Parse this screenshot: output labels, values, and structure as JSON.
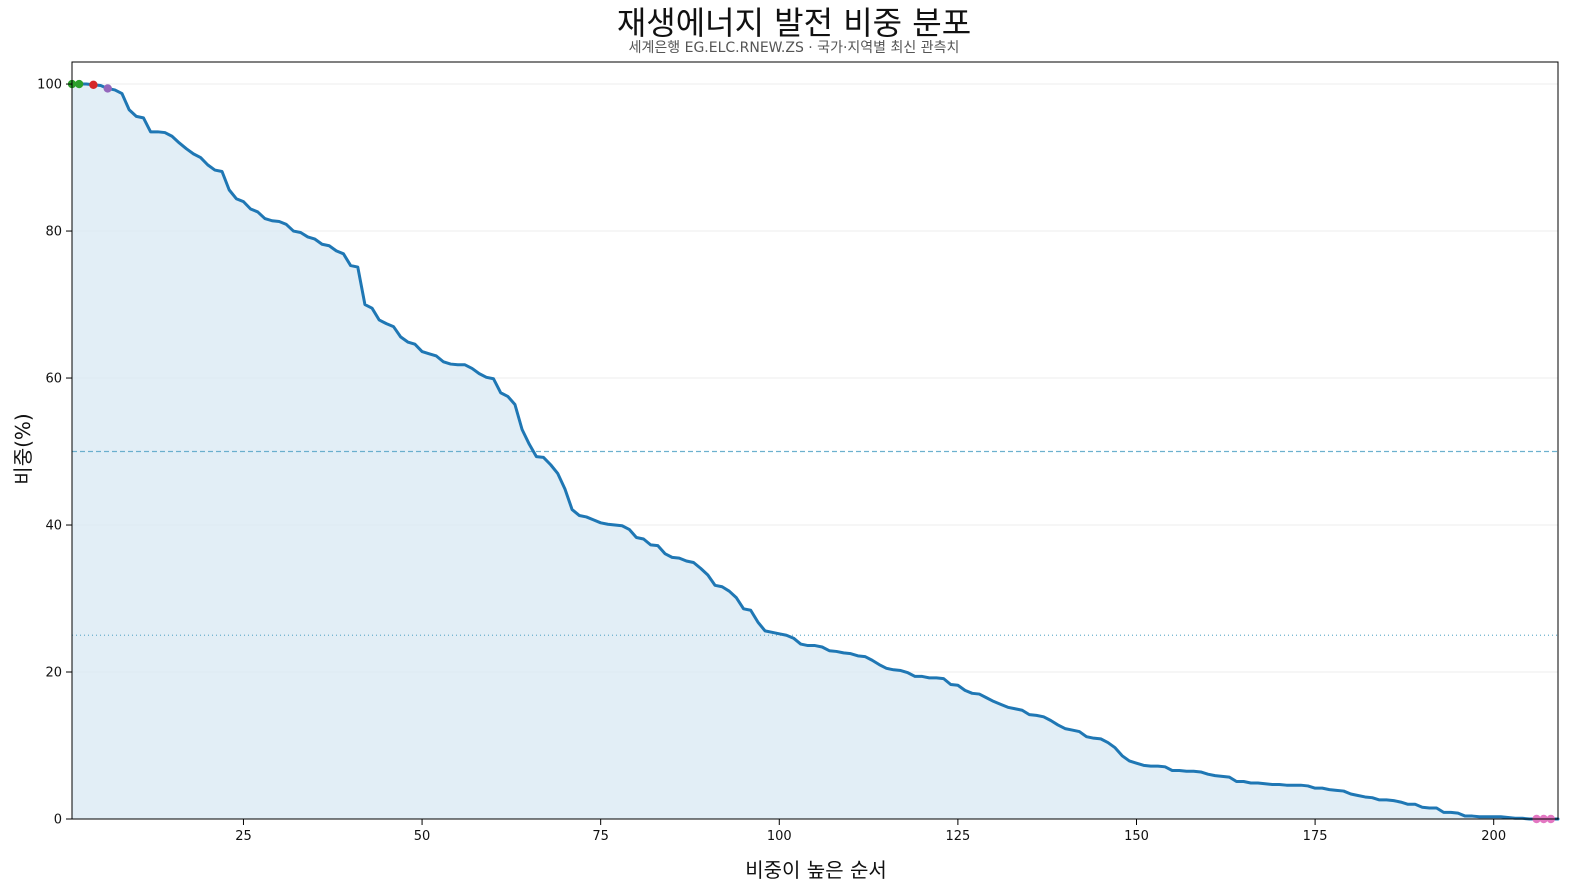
{
  "chart_data": {
    "type": "area",
    "title": "재생에너지 발전 비중 분포",
    "subtitle": "세계은행 EG.ELC.RNEW.ZS · 국가·지역별 최신 관측치",
    "xlabel": "비중이 높은 순서",
    "ylabel": "비중(%)",
    "xlim": [
      1,
      209
    ],
    "ylim": [
      0,
      103
    ],
    "x_ticks": [
      25,
      50,
      75,
      100,
      125,
      150,
      175,
      200
    ],
    "y_ticks": [
      0,
      20,
      40,
      60,
      80,
      100
    ],
    "grid": "horizontal",
    "reference_lines": [
      {
        "y": 50,
        "style": "dashed"
      },
      {
        "y": 25,
        "style": "dotted"
      }
    ],
    "colors": {
      "line": "#1f77b4",
      "fill": "#d8e8f3",
      "grid": "#eeeeee",
      "reference": "#5ea9c9",
      "marker_green": "#2ca02c",
      "marker_red": "#d62728",
      "marker_purple": "#9467bd",
      "marker_pink": "#e377c2"
    },
    "x": [
      1,
      2,
      3,
      4,
      5,
      6,
      7,
      8,
      9,
      10,
      11,
      12,
      13,
      14,
      15,
      16,
      17,
      18,
      19,
      20,
      21,
      22,
      23,
      24,
      25,
      26,
      27,
      28,
      29,
      30,
      31,
      32,
      33,
      34,
      35,
      36,
      37,
      38,
      39,
      40,
      41,
      42,
      43,
      44,
      45,
      46,
      47,
      48,
      49,
      50,
      51,
      52,
      53,
      54,
      55,
      56,
      57,
      58,
      59,
      60,
      61,
      62,
      63,
      64,
      65,
      66,
      67,
      68,
      69,
      70,
      71,
      72,
      73,
      74,
      75,
      76,
      77,
      78,
      79,
      80,
      81,
      82,
      83,
      84,
      85,
      86,
      87,
      88,
      89,
      90,
      91,
      92,
      93,
      94,
      95,
      96,
      97,
      98,
      99,
      100,
      101,
      102,
      103,
      104,
      105,
      106,
      107,
      108,
      109,
      110,
      111,
      112,
      113,
      114,
      115,
      116,
      117,
      118,
      119,
      120,
      121,
      122,
      123,
      124,
      125,
      126,
      127,
      128,
      129,
      130,
      131,
      132,
      133,
      134,
      135,
      136,
      137,
      138,
      139,
      140,
      141,
      142,
      143,
      144,
      145,
      146,
      147,
      148,
      149,
      150,
      151,
      152,
      153,
      154,
      155,
      156,
      157,
      158,
      159,
      160,
      161,
      162,
      163,
      164,
      165,
      166,
      167,
      168,
      169,
      170,
      171,
      172,
      173,
      174,
      175,
      176,
      177,
      178,
      179,
      180,
      181,
      182,
      183,
      184,
      185,
      186,
      187,
      188,
      189,
      190,
      191,
      192,
      193,
      194,
      195,
      196,
      197,
      198,
      199,
      200,
      201,
      202,
      203,
      204,
      205,
      206,
      207,
      208,
      209
    ],
    "values": [
      100,
      100,
      100,
      99.9,
      99.8,
      99.4,
      99.2,
      98.7,
      96.5,
      95.6,
      95.4,
      93.5,
      93.5,
      93.4,
      92.9,
      92.0,
      91.2,
      90.5,
      90.0,
      89.0,
      88.3,
      88.1,
      85.6,
      84.4,
      84.0,
      83.0,
      82.6,
      81.7,
      81.4,
      81.3,
      80.9,
      80.0,
      79.8,
      79.2,
      78.9,
      78.2,
      78.0,
      77.3,
      76.9,
      75.3,
      75.1,
      70.0,
      69.5,
      67.9,
      67.4,
      67.0,
      65.6,
      64.9,
      64.6,
      63.6,
      63.3,
      63.0,
      62.2,
      61.9,
      61.8,
      61.8,
      61.3,
      60.6,
      60.1,
      59.9,
      58.0,
      57.5,
      56.4,
      53.0,
      51.0,
      49.3,
      49.2,
      48.2,
      47.0,
      44.9,
      42.1,
      41.3,
      41.1,
      40.7,
      40.3,
      40.1,
      40.0,
      39.9,
      39.4,
      38.3,
      38.1,
      37.3,
      37.2,
      36.1,
      35.6,
      35.5,
      35.1,
      34.9,
      34.1,
      33.2,
      31.8,
      31.6,
      31.0,
      30.1,
      28.6,
      28.4,
      26.8,
      25.6,
      25.4,
      25.2,
      25.0,
      24.6,
      23.8,
      23.6,
      23.6,
      23.4,
      22.9,
      22.8,
      22.6,
      22.5,
      22.2,
      22.1,
      21.6,
      21.0,
      20.5,
      20.3,
      20.2,
      19.9,
      19.4,
      19.4,
      19.2,
      19.2,
      19.1,
      18.3,
      18.2,
      17.5,
      17.1,
      17.0,
      16.5,
      16.0,
      15.6,
      15.2,
      15.0,
      14.8,
      14.2,
      14.1,
      13.9,
      13.4,
      12.8,
      12.3,
      12.1,
      11.9,
      11.2,
      11.0,
      10.9,
      10.4,
      9.7,
      8.6,
      7.9,
      7.6,
      7.3,
      7.2,
      7.2,
      7.1,
      6.6,
      6.6,
      6.5,
      6.5,
      6.4,
      6.1,
      5.9,
      5.8,
      5.7,
      5.1,
      5.1,
      4.9,
      4.9,
      4.8,
      4.7,
      4.7,
      4.6,
      4.6,
      4.6,
      4.5,
      4.2,
      4.2,
      4.0,
      3.9,
      3.8,
      3.4,
      3.2,
      3.0,
      2.9,
      2.6,
      2.6,
      2.5,
      2.3,
      2.0,
      2.0,
      1.6,
      1.5,
      1.5,
      0.9,
      0.9,
      0.8,
      0.4,
      0.4,
      0.3,
      0.3,
      0.3,
      0.3,
      0.2,
      0.1,
      0.1,
      0.0,
      0.0,
      0.0,
      0.0,
      0.0
    ],
    "highlight_points": [
      {
        "x": 1,
        "y": 100,
        "color": "#2ca02c"
      },
      {
        "x": 2,
        "y": 100,
        "color": "#2ca02c"
      },
      {
        "x": 4,
        "y": 99.9,
        "color": "#d62728"
      },
      {
        "x": 6,
        "y": 99.4,
        "color": "#9467bd"
      },
      {
        "x": 206,
        "y": 0.0,
        "color": "#e377c2"
      },
      {
        "x": 207,
        "y": 0.0,
        "color": "#e377c2"
      },
      {
        "x": 208,
        "y": 0.0,
        "color": "#e377c2"
      }
    ]
  }
}
